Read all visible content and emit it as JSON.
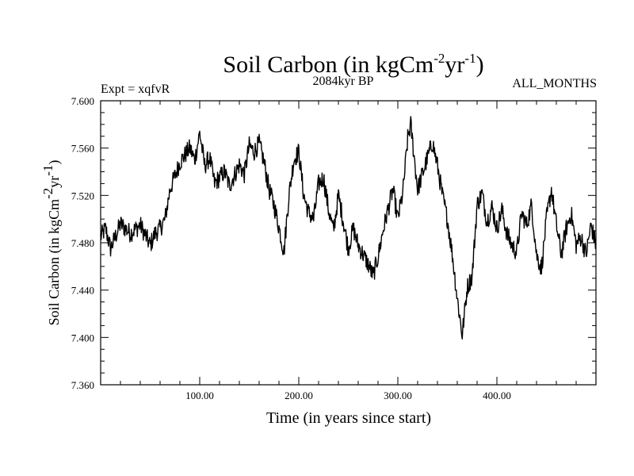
{
  "chart_data": {
    "type": "line",
    "title": {
      "base": "Soil Carbon (in kgCm",
      "exp1": "-2",
      "mid": "yr",
      "exp2": "-1",
      "end": ")"
    },
    "subtitle_left": "Expt = xqfvR",
    "subtitle_center": "2084kyr BP",
    "subtitle_right": "ALL_MONTHS",
    "ylabel": {
      "base": "Soil Carbon (in kgCm",
      "exp1": "-2",
      "mid": "yr",
      "exp2": "-1",
      "end": ")"
    },
    "xlabel": "Time (in years since start)",
    "xlim": [
      0,
      500
    ],
    "ylim": [
      7.36,
      7.6
    ],
    "xticks": [
      100,
      200,
      300,
      400
    ],
    "xtick_labels": [
      "100.00",
      "200.00",
      "300.00",
      "400.00"
    ],
    "yticks": [
      7.36,
      7.4,
      7.44,
      7.48,
      7.52,
      7.56,
      7.6
    ],
    "ytick_labels": [
      "7.360",
      "7.400",
      "7.440",
      "7.480",
      "7.520",
      "7.560",
      "7.600"
    ],
    "grid": false,
    "series": [
      {
        "name": "Soil Carbon",
        "color": "#000000",
        "x": [
          0,
          5,
          10,
          20,
          30,
          40,
          50,
          55,
          60,
          65,
          70,
          80,
          90,
          95,
          100,
          105,
          110,
          115,
          125,
          130,
          140,
          145,
          150,
          155,
          160,
          165,
          170,
          175,
          180,
          185,
          190,
          195,
          200,
          205,
          210,
          215,
          220,
          225,
          230,
          235,
          240,
          245,
          250,
          255,
          260,
          265,
          270,
          275,
          280,
          285,
          290,
          295,
          300,
          305,
          310,
          313,
          320,
          330,
          335,
          340,
          345,
          350,
          355,
          360,
          365,
          370,
          375,
          380,
          385,
          390,
          395,
          400,
          405,
          410,
          415,
          420,
          425,
          430,
          435,
          440,
          445,
          450,
          455,
          460,
          465,
          470,
          475,
          480,
          485,
          490,
          495,
          500
        ],
        "values": [
          7.485,
          7.492,
          7.475,
          7.496,
          7.488,
          7.495,
          7.478,
          7.488,
          7.492,
          7.5,
          7.525,
          7.548,
          7.56,
          7.55,
          7.573,
          7.545,
          7.552,
          7.53,
          7.54,
          7.528,
          7.546,
          7.538,
          7.562,
          7.557,
          7.564,
          7.548,
          7.525,
          7.512,
          7.493,
          7.472,
          7.52,
          7.55,
          7.557,
          7.52,
          7.505,
          7.5,
          7.53,
          7.535,
          7.508,
          7.49,
          7.52,
          7.498,
          7.475,
          7.492,
          7.478,
          7.47,
          7.462,
          7.452,
          7.468,
          7.49,
          7.508,
          7.525,
          7.5,
          7.522,
          7.568,
          7.58,
          7.525,
          7.552,
          7.565,
          7.545,
          7.52,
          7.5,
          7.47,
          7.433,
          7.402,
          7.442,
          7.452,
          7.512,
          7.522,
          7.498,
          7.51,
          7.492,
          7.508,
          7.488,
          7.478,
          7.472,
          7.505,
          7.495,
          7.512,
          7.47,
          7.458,
          7.5,
          7.525,
          7.495,
          7.47,
          7.492,
          7.505,
          7.478,
          7.485,
          7.47,
          7.495,
          7.478
        ]
      }
    ]
  }
}
